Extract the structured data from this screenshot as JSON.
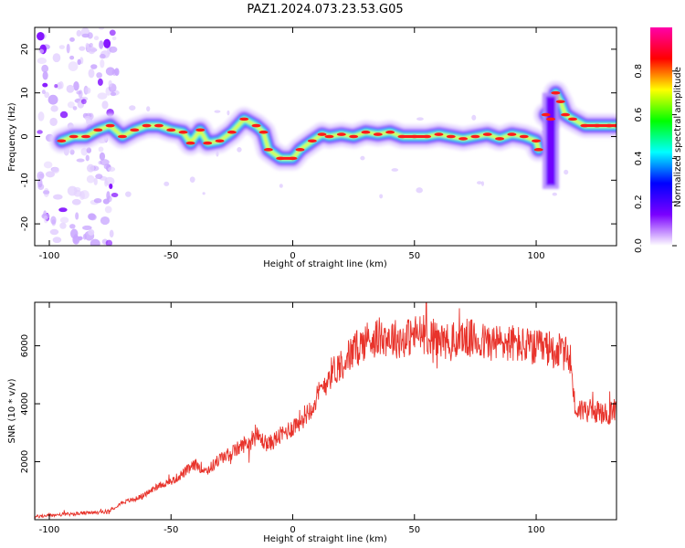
{
  "figure": {
    "title": "PAZ1.2024.073.23.53.G05"
  },
  "chart_data": [
    {
      "type": "heatmap",
      "xlabel": "Height of straight line (km)",
      "ylabel": "Frequency (Hz)",
      "xlim": [
        -106,
        133
      ],
      "ylim": [
        -25,
        25
      ],
      "xticks": [
        -100,
        -50,
        0,
        50,
        100
      ],
      "yticks": [
        -20,
        -10,
        0,
        10,
        20
      ],
      "ridge": {
        "x": [
          -95,
          -90,
          -85,
          -80,
          -75,
          -70,
          -65,
          -60,
          -55,
          -50,
          -45,
          -42,
          -38,
          -35,
          -30,
          -25,
          -20,
          -15,
          -12,
          -10,
          -5,
          0,
          3,
          8,
          12,
          15,
          20,
          25,
          30,
          35,
          40,
          45,
          50,
          55,
          60,
          65,
          70,
          75,
          80,
          85,
          90,
          95,
          100,
          101
        ],
        "frequency_hz": [
          -1,
          0,
          0,
          1.5,
          2.5,
          0,
          1.5,
          2.5,
          2.5,
          1.5,
          1,
          -1.5,
          1.5,
          -1.5,
          -1,
          1,
          4,
          2.5,
          1,
          -3,
          -5,
          -5,
          -3,
          -1,
          0.5,
          0,
          0.5,
          0,
          1,
          0.5,
          1,
          0,
          0,
          0,
          0.5,
          0,
          -0.5,
          0,
          0.5,
          -0.5,
          0.5,
          0,
          -1,
          -3
        ],
        "branch": {
          "x": [
            104,
            106,
            108,
            110,
            112,
            115,
            120,
            125,
            130,
            133
          ],
          "frequency_hz": [
            5,
            4,
            10,
            8,
            5,
            4,
            2.5,
            2.5,
            2.5,
            2.5
          ]
        },
        "artifact": {
          "x": 106,
          "frequency_hz": [
            -12,
            10
          ]
        }
      }
    },
    {
      "type": "colorbar",
      "label": "Normalized spectral amplitude",
      "ticks": [
        0.0,
        0.2,
        0.4,
        0.6,
        0.8
      ],
      "tick_labels": [
        "0.0",
        "0.2",
        "0.4",
        "0.6",
        "0.8"
      ],
      "range": [
        0,
        1
      ],
      "colormap": [
        "#ffffff",
        "#7a00ff",
        "#0000ff",
        "#00ffff",
        "#00ff00",
        "#ffff00",
        "#ff0000",
        "#ff00aa"
      ]
    },
    {
      "type": "line",
      "xlabel": "Height of straight line (km)",
      "ylabel": "SNR (10 * v/v)",
      "xlim": [
        -106,
        133
      ],
      "ylim": [
        0,
        7500
      ],
      "xticks": [
        -100,
        -50,
        0,
        50,
        100
      ],
      "yticks": [
        2000,
        4000,
        6000
      ],
      "color": "#e8332b",
      "series": [
        {
          "x": [
            -106,
            -100,
            -90,
            -80,
            -75,
            -72,
            -70,
            -65,
            -60,
            -55,
            -50,
            -45,
            -40,
            -35,
            -30,
            -25,
            -20,
            -17,
            -15,
            -12,
            -10,
            -5,
            0,
            5,
            10,
            15,
            20,
            25,
            30,
            35,
            40,
            45,
            50,
            55,
            60,
            65,
            70,
            75,
            80,
            85,
            90,
            95,
            100,
            105,
            110,
            114,
            116,
            120,
            125,
            130,
            133
          ],
          "y": [
            100,
            150,
            200,
            250,
            300,
            500,
            600,
            700,
            900,
            1200,
            1300,
            1600,
            1900,
            1700,
            2100,
            2300,
            2600,
            2700,
            2900,
            2700,
            2600,
            2900,
            3200,
            3600,
            4200,
            5000,
            5400,
            5800,
            6200,
            6300,
            6300,
            6200,
            6400,
            6400,
            6200,
            6100,
            6300,
            6200,
            6100,
            6100,
            6100,
            6000,
            5900,
            5900,
            5800,
            5600,
            3800,
            3800,
            3700,
            3600,
            3900
          ]
        }
      ]
    }
  ]
}
